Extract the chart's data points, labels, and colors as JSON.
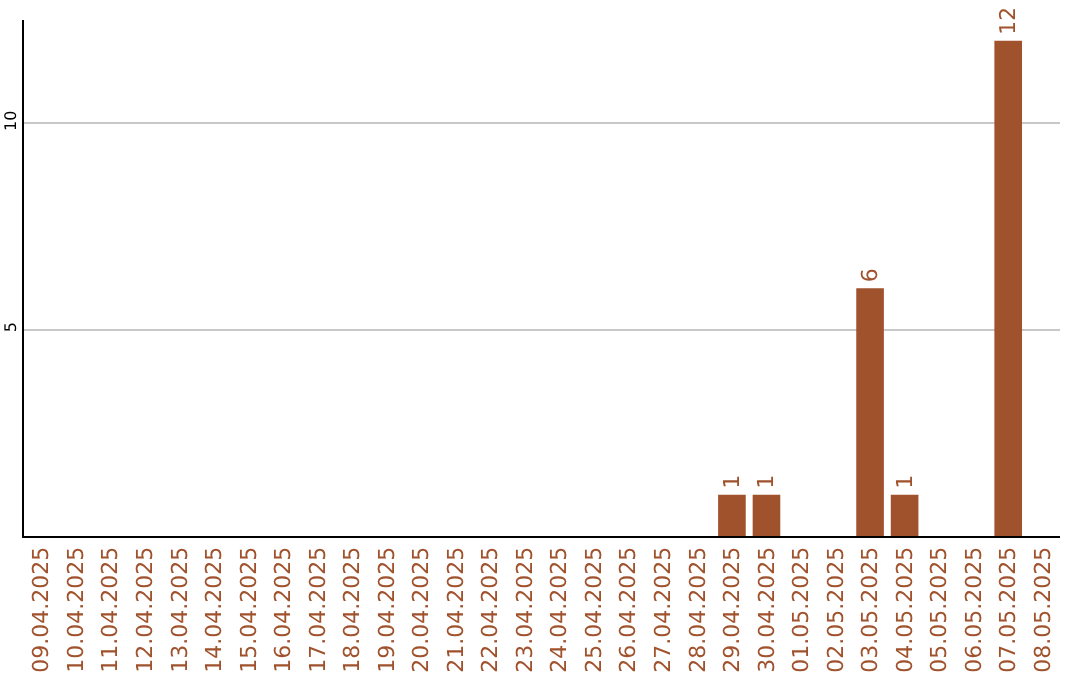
{
  "chart_data": {
    "type": "bar",
    "categories": [
      "09.04.2025",
      "10.04.2025",
      "11.04.2025",
      "12.04.2025",
      "13.04.2025",
      "14.04.2025",
      "15.04.2025",
      "16.04.2025",
      "17.04.2025",
      "18.04.2025",
      "19.04.2025",
      "20.04.2025",
      "21.04.2025",
      "22.04.2025",
      "23.04.2025",
      "24.04.2025",
      "25.04.2025",
      "26.04.2025",
      "27.04.2025",
      "28.04.2025",
      "29.04.2025",
      "30.04.2025",
      "01.05.2025",
      "02.05.2025",
      "03.05.2025",
      "04.05.2025",
      "05.05.2025",
      "06.05.2025",
      "07.05.2025",
      "08.05.2025"
    ],
    "values": [
      0,
      0,
      0,
      0,
      0,
      0,
      0,
      0,
      0,
      0,
      0,
      0,
      0,
      0,
      0,
      0,
      0,
      0,
      0,
      0,
      1,
      1,
      0,
      0,
      6,
      1,
      0,
      0,
      12,
      0
    ],
    "value_labels": [
      null,
      null,
      null,
      null,
      null,
      null,
      null,
      null,
      null,
      null,
      null,
      null,
      null,
      null,
      null,
      null,
      null,
      null,
      null,
      null,
      "1",
      "1",
      null,
      null,
      "6",
      "1",
      null,
      null,
      "12",
      null
    ],
    "color": "#a0522d",
    "ylim": [
      0,
      12.5
    ],
    "yticks": [
      5,
      10
    ],
    "grid": "y"
  }
}
